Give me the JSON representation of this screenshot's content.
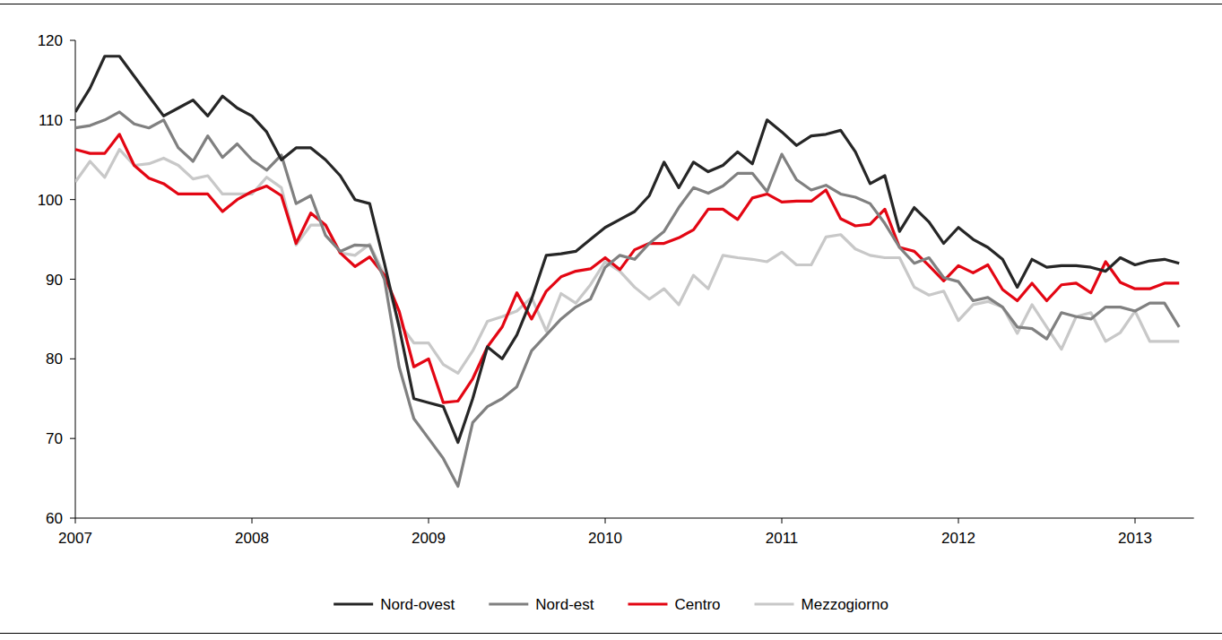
{
  "chart_data": {
    "type": "line",
    "categories": [
      "2007",
      null,
      null,
      null,
      null,
      null,
      null,
      null,
      null,
      null,
      null,
      null,
      "2008",
      null,
      null,
      null,
      null,
      null,
      null,
      null,
      null,
      null,
      null,
      null,
      "2009",
      null,
      null,
      null,
      null,
      null,
      null,
      null,
      null,
      null,
      null,
      null,
      "2010",
      null,
      null,
      null,
      null,
      null,
      null,
      null,
      null,
      null,
      null,
      null,
      "2011",
      null,
      null,
      null,
      null,
      null,
      null,
      null,
      null,
      null,
      null,
      null,
      "2012",
      null,
      null,
      null,
      null,
      null,
      null,
      null,
      null,
      null,
      null,
      null,
      "2013",
      null,
      null,
      null
    ],
    "series": [
      {
        "name": "Nord-ovest",
        "color": "#262626",
        "values": [
          111,
          114,
          118,
          118,
          115.5,
          113,
          110.5,
          111.5,
          112.5,
          110.5,
          113,
          111.5,
          110.5,
          108.5,
          105,
          106.5,
          106.5,
          105,
          103,
          100,
          99.5,
          92,
          84,
          75,
          74.5,
          74,
          69.5,
          75,
          81.5,
          80,
          83,
          87.5,
          93,
          93.2,
          93.5,
          95,
          96.5,
          97.5,
          98.5,
          100.5,
          104.7,
          101.5,
          104.7,
          103.5,
          104.3,
          106,
          104.5,
          110,
          108.5,
          106.8,
          108,
          108.2,
          108.7,
          106,
          102,
          103,
          96,
          99,
          97.2,
          94.5,
          96.5,
          95,
          94,
          92.5,
          89,
          92.5,
          91.5,
          91.7,
          91.7,
          91.5,
          91,
          92.7,
          91.8,
          92.3,
          92.5,
          92
        ]
      },
      {
        "name": "Nord-est",
        "color": "#808080",
        "values": [
          109,
          109.3,
          110,
          111,
          109.5,
          109,
          110,
          106.5,
          104.8,
          108,
          105.3,
          107,
          105,
          103.7,
          105.6,
          99.5,
          100.5,
          95.5,
          93.5,
          94.3,
          94.2,
          90,
          79,
          72.5,
          70,
          67.5,
          64,
          72,
          74,
          75,
          76.5,
          81,
          83,
          85,
          86.5,
          87.5,
          91.5,
          93,
          92.5,
          94.5,
          96,
          99,
          101.5,
          100.8,
          101.7,
          103.3,
          103.3,
          101,
          105.7,
          102.5,
          101.2,
          101.8,
          100.7,
          100.3,
          99.5,
          97,
          94,
          92,
          92.7,
          90.2,
          89.7,
          87.3,
          87.7,
          86.5,
          84,
          83.8,
          82.5,
          85.8,
          85.3,
          85,
          86.5,
          86.5,
          86,
          87,
          87,
          84
        ]
      },
      {
        "name": "Centro",
        "color": "#e30613",
        "values": [
          106.3,
          105.8,
          105.8,
          108.2,
          104.3,
          102.7,
          102,
          100.7,
          100.7,
          100.7,
          98.5,
          100,
          101,
          101.7,
          100.5,
          94.5,
          98.3,
          96.8,
          93.3,
          91.6,
          92.8,
          90.5,
          86,
          79,
          80,
          74.5,
          74.7,
          77.5,
          81.5,
          84,
          88.3,
          85,
          88.5,
          90.3,
          91,
          91.3,
          92.7,
          91.2,
          93.7,
          94.5,
          94.5,
          95.2,
          96.2,
          98.8,
          98.8,
          97.5,
          100.2,
          100.7,
          99.7,
          99.8,
          99.8,
          101.2,
          97.6,
          96.7,
          96.9,
          98.8,
          94,
          93.5,
          91.7,
          89.8,
          91.7,
          90.8,
          91.8,
          88.7,
          87.3,
          89.5,
          87.3,
          89.3,
          89.5,
          88.3,
          92.2,
          89.6,
          88.8,
          88.8,
          89.5,
          89.5
        ]
      },
      {
        "name": "Mezzogiorno",
        "color": "#c8c8c8",
        "values": [
          102.2,
          104.8,
          102.8,
          106.3,
          104.3,
          104.5,
          105.2,
          104.3,
          102.6,
          103,
          100.7,
          100.7,
          100.7,
          102.8,
          101.5,
          94.3,
          96.8,
          96.8,
          93.3,
          93,
          94.4,
          90.5,
          84.5,
          82,
          82,
          79.3,
          78.2,
          81,
          84.7,
          85.3,
          86,
          87.7,
          83.5,
          88.2,
          87,
          89.3,
          92.2,
          91,
          89,
          87.5,
          88.8,
          86.8,
          90.5,
          88.8,
          93,
          92.7,
          92.5,
          92.2,
          93.4,
          91.8,
          91.8,
          95.3,
          95.6,
          93.8,
          93,
          92.7,
          92.7,
          89,
          88,
          88.5,
          84.8,
          86.8,
          87.2,
          86.5,
          83.2,
          86.8,
          84,
          81.2,
          85.3,
          85.8,
          82.2,
          83.3,
          86,
          82.2,
          82.2,
          82.2
        ]
      }
    ],
    "ylim": [
      60,
      120
    ],
    "yticks": [
      60,
      70,
      80,
      90,
      100,
      110,
      120
    ],
    "grid": false,
    "legend": "bottom"
  }
}
